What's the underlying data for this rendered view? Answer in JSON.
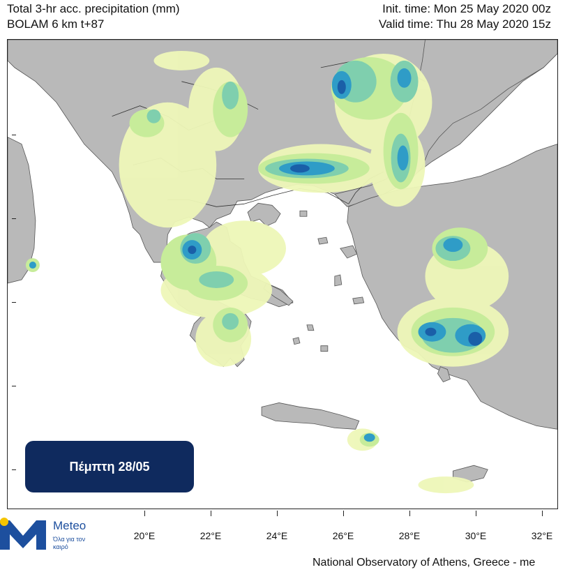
{
  "header": {
    "title_line1": "Total 3-hr acc. precipitation (mm)",
    "title_line2": "BOLAM 6 km t+87",
    "init_time": "Init. time: Mon 25 May 2020 00z",
    "valid_time": "Valid time: Thu 28 May 2020 15z"
  },
  "map": {
    "longitude_ticks": [
      "20°E",
      "22°E",
      "24°E",
      "26°E",
      "28°E",
      "30°E",
      "32°E"
    ],
    "colors": {
      "land": "#b9b9b9",
      "sea": "#ffffff",
      "precip_light": "#eef7b8",
      "precip_low": "#c7ec9a",
      "precip_mid": "#7fcfae",
      "precip_high": "#2f9cc7",
      "precip_max": "#1a5fa8"
    }
  },
  "badge": {
    "day_label": "Πέμπτη 28/05"
  },
  "logo": {
    "name": "Meteo",
    "tagline": "Όλα για τον καιρό"
  },
  "footer": {
    "credit": "National Observatory of Athens, Greece - me"
  }
}
